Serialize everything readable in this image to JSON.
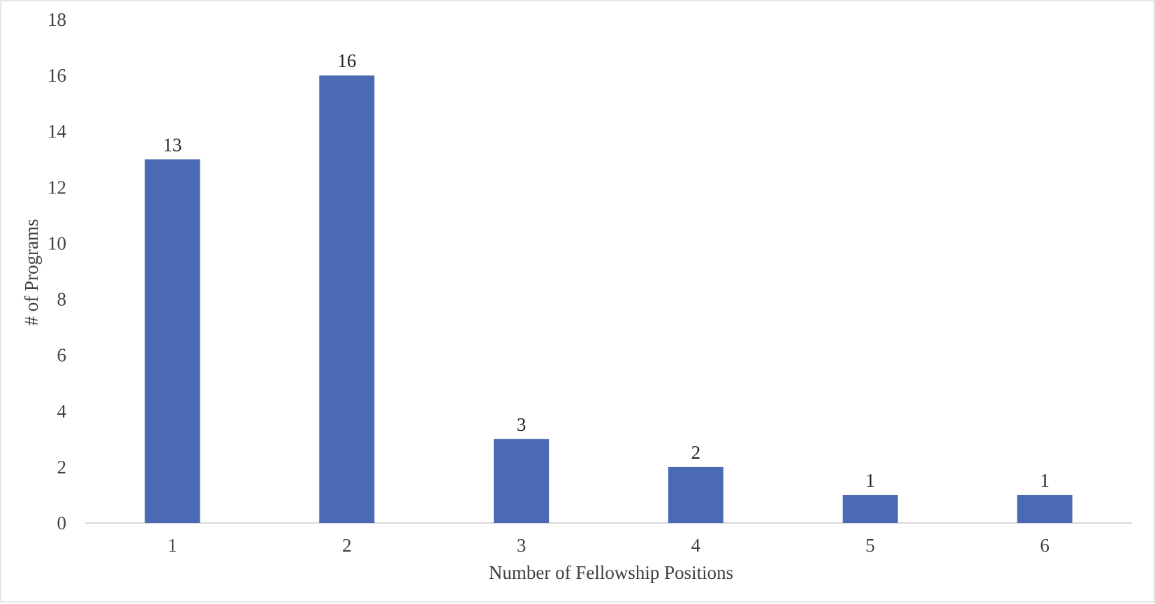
{
  "chart_data": {
    "type": "bar",
    "title": "",
    "xlabel": "Number of Fellowship Positions",
    "ylabel": "# of Programs",
    "categories": [
      "1",
      "2",
      "3",
      "4",
      "5",
      "6"
    ],
    "values": [
      13,
      16,
      3,
      2,
      1,
      1
    ],
    "ylim": [
      0,
      18
    ],
    "yticks": [
      0,
      2,
      4,
      6,
      8,
      10,
      12,
      14,
      16,
      18
    ],
    "grid": false,
    "legend": "none",
    "data_labels": true,
    "colors": {
      "bar": "#4a6bb3",
      "axis": "#d9d9d9"
    }
  }
}
